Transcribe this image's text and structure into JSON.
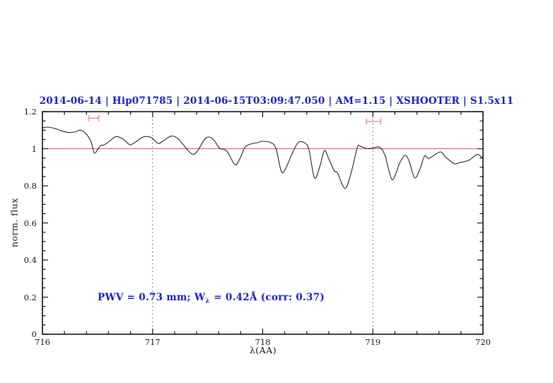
{
  "header": {
    "title": "2014-06-14 | Hip071785 | 2014-06-15T03:09:47.050 | AM=1.15 | XSHOOTER | S1.5x11",
    "color": "#1818d2"
  },
  "annotation": {
    "prefix": "PWV = 0.73 mm; W",
    "subscript": "λ",
    "suffix": " = 0.42Å (corr: 0.37)",
    "full_text": "PWV = 0.73 mm; W_λ = 0.42Å (corr: 0.37)",
    "color": "#1818d2"
  },
  "colors": {
    "frame": "#111111",
    "spectrum": "#222222",
    "reference_line": "#d25c5c",
    "band_marker": "#f09c9c",
    "dotted_line": "#555555",
    "text_blue": "#1818d2"
  },
  "chart_data": {
    "type": "line",
    "title": "2014-06-14 | Hip071785 | 2014-06-15T03:09:47.050 | AM=1.15 | XSHOOTER | S1.5x11",
    "xlabel": "λ(AA)",
    "ylabel": "norm. flux",
    "xlim": [
      716,
      720
    ],
    "ylim": [
      0,
      1.2
    ],
    "grid": "off",
    "legend": "none",
    "x_major_ticks": [
      716,
      717,
      718,
      719,
      720
    ],
    "x_tick_labels": [
      "716",
      "717",
      "718",
      "719",
      "720"
    ],
    "x_minor_step": 0.2,
    "y_major_ticks": [
      0,
      0.2,
      0.4,
      0.6,
      0.8,
      1.0,
      1.2
    ],
    "y_tick_labels": [
      "0",
      "0.2",
      "0.4",
      "0.6",
      "0.8",
      "1",
      "1.2"
    ],
    "y_minor_step": 0.05,
    "reference_line": {
      "y": 1.0
    },
    "dotted_vlines": [
      717,
      719
    ],
    "band_markers": [
      {
        "x_min": 716.42,
        "x_max": 716.51,
        "y": 1.165
      },
      {
        "x_min": 718.94,
        "x_max": 719.07,
        "y": 1.147
      }
    ],
    "series": [
      {
        "name": "normalized spectrum",
        "points": [
          [
            716.0,
            1.112
          ],
          [
            716.05,
            1.116
          ],
          [
            716.12,
            1.108
          ],
          [
            716.18,
            1.095
          ],
          [
            716.24,
            1.088
          ],
          [
            716.31,
            1.093
          ],
          [
            716.34,
            1.101
          ],
          [
            716.39,
            1.084
          ],
          [
            716.44,
            1.04
          ],
          [
            716.47,
            0.977
          ],
          [
            716.5,
            0.995
          ],
          [
            716.53,
            1.017
          ],
          [
            716.56,
            1.021
          ],
          [
            716.62,
            1.046
          ],
          [
            716.67,
            1.066
          ],
          [
            716.73,
            1.053
          ],
          [
            716.78,
            1.027
          ],
          [
            716.8,
            1.021
          ],
          [
            716.84,
            1.034
          ],
          [
            716.9,
            1.059
          ],
          [
            716.94,
            1.066
          ],
          [
            716.99,
            1.06
          ],
          [
            717.05,
            1.029
          ],
          [
            717.09,
            1.04
          ],
          [
            717.17,
            1.068
          ],
          [
            717.23,
            1.055
          ],
          [
            717.28,
            1.021
          ],
          [
            717.36,
            0.971
          ],
          [
            717.41,
            0.99
          ],
          [
            717.46,
            1.04
          ],
          [
            717.5,
            1.063
          ],
          [
            717.55,
            1.051
          ],
          [
            717.61,
            1.002
          ],
          [
            717.64,
            0.998
          ],
          [
            717.68,
            0.983
          ],
          [
            717.75,
            0.914
          ],
          [
            717.8,
            0.956
          ],
          [
            717.84,
            1.009
          ],
          [
            717.89,
            1.025
          ],
          [
            717.96,
            1.034
          ],
          [
            717.99,
            1.04
          ],
          [
            718.07,
            1.034
          ],
          [
            718.12,
            1.002
          ],
          [
            718.17,
            0.876
          ],
          [
            718.21,
            0.895
          ],
          [
            718.26,
            0.964
          ],
          [
            718.32,
            1.032
          ],
          [
            718.38,
            1.032
          ],
          [
            718.42,
            0.994
          ],
          [
            718.47,
            0.843
          ],
          [
            718.52,
            0.907
          ],
          [
            718.56,
            0.99
          ],
          [
            718.6,
            0.945
          ],
          [
            718.65,
            0.881
          ],
          [
            718.68,
            0.868
          ],
          [
            718.75,
            0.786
          ],
          [
            718.81,
            0.888
          ],
          [
            718.86,
            1.009
          ],
          [
            718.89,
            1.012
          ],
          [
            718.94,
            1.002
          ],
          [
            718.99,
            1.002
          ],
          [
            719.06,
            1.008
          ],
          [
            719.11,
            0.964
          ],
          [
            719.17,
            0.837
          ],
          [
            719.21,
            0.868
          ],
          [
            719.24,
            0.918
          ],
          [
            719.29,
            0.964
          ],
          [
            719.33,
            0.933
          ],
          [
            719.38,
            0.843
          ],
          [
            719.43,
            0.895
          ],
          [
            719.47,
            0.961
          ],
          [
            719.51,
            0.948
          ],
          [
            719.61,
            0.983
          ],
          [
            719.66,
            0.956
          ],
          [
            719.74,
            0.919
          ],
          [
            719.79,
            0.926
          ],
          [
            719.83,
            0.93
          ],
          [
            719.88,
            0.941
          ],
          [
            719.95,
            0.97
          ],
          [
            720.0,
            0.945
          ]
        ]
      }
    ]
  }
}
